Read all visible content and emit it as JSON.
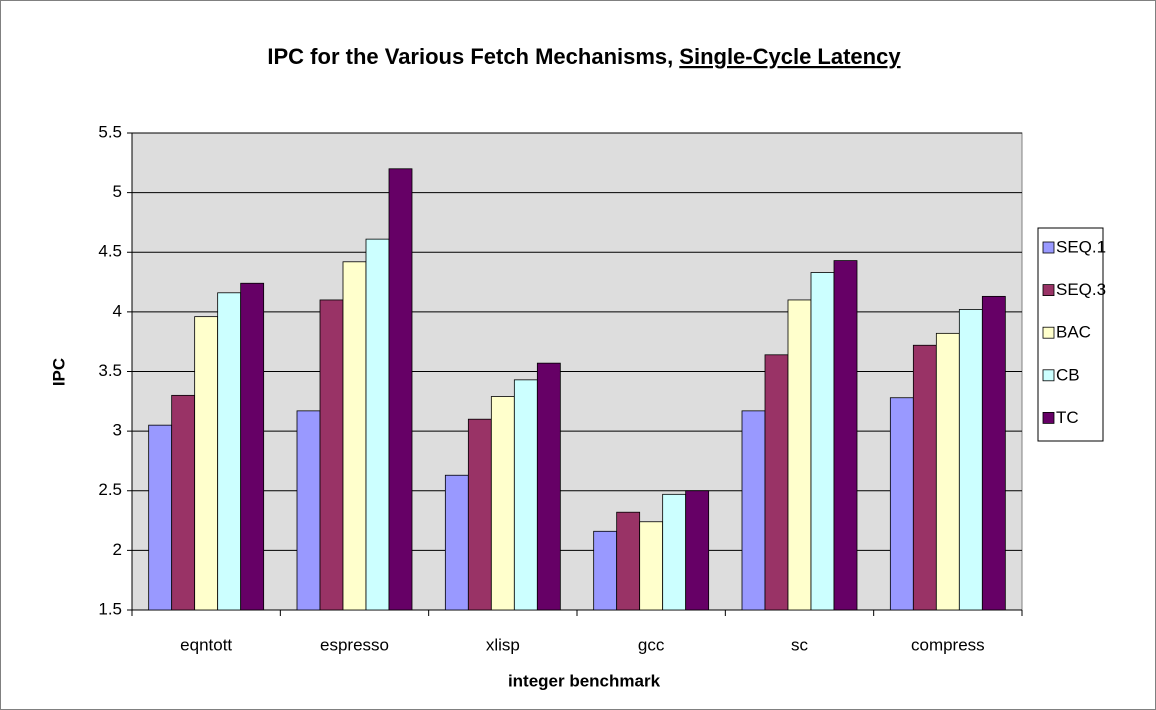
{
  "chart_data": {
    "type": "bar",
    "title": "IPC for the Various Fetch Mechanisms,",
    "title_underlined": "Single-Cycle Latency",
    "x_label": "integer benchmark",
    "y_label": "IPC",
    "categories": [
      "eqntott",
      "espresso",
      "xlisp",
      "gcc",
      "sc",
      "compress"
    ],
    "series": [
      {
        "name": "SEQ.1",
        "color": "#9999ff",
        "values": [
          3.05,
          3.17,
          2.63,
          2.16,
          3.17,
          3.28
        ]
      },
      {
        "name": "SEQ.3",
        "color": "#993366",
        "values": [
          3.3,
          4.1,
          3.1,
          2.32,
          3.64,
          3.72
        ]
      },
      {
        "name": "BAC",
        "color": "#ffffcc",
        "values": [
          3.96,
          4.42,
          3.29,
          2.24,
          4.1,
          3.82
        ]
      },
      {
        "name": "CB",
        "color": "#ccffff",
        "values": [
          4.16,
          4.61,
          3.43,
          2.47,
          4.33,
          4.02
        ]
      },
      {
        "name": "TC",
        "color": "#660066",
        "values": [
          4.24,
          5.2,
          3.57,
          2.5,
          4.43,
          4.13
        ]
      }
    ],
    "ylim": [
      1.5,
      5.5
    ],
    "yticks": [
      1.5,
      2,
      2.5,
      3,
      3.5,
      4,
      4.5,
      5,
      5.5
    ],
    "grid": true,
    "legend": "right"
  }
}
